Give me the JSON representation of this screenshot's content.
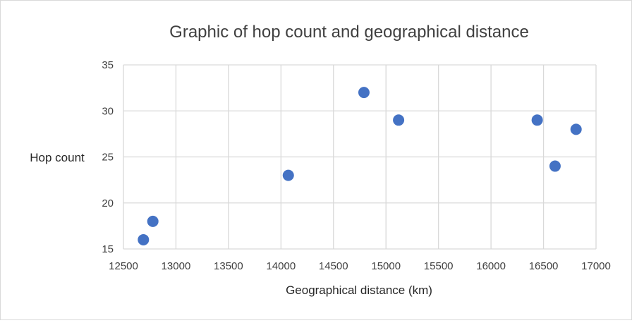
{
  "chart_data": {
    "type": "scatter",
    "title": "Graphic of hop count and geographical distance",
    "xlabel": "Geographical distance (km)",
    "ylabel": "Hop count",
    "xlim": [
      12500,
      17000
    ],
    "ylim": [
      15,
      35
    ],
    "xticks": [
      "12500",
      "13000",
      "13500",
      "14000",
      "14500",
      "15000",
      "15500",
      "16000",
      "16500",
      "17000"
    ],
    "yticks": [
      "15",
      "20",
      "25",
      "30",
      "35"
    ],
    "grid": true,
    "legend": "none",
    "color": "#4472c4",
    "points": [
      {
        "x": 12690,
        "y": 16
      },
      {
        "x": 12780,
        "y": 18
      },
      {
        "x": 14070,
        "y": 23
      },
      {
        "x": 14790,
        "y": 32
      },
      {
        "x": 15120,
        "y": 29
      },
      {
        "x": 16440,
        "y": 29
      },
      {
        "x": 16610,
        "y": 24
      },
      {
        "x": 16810,
        "y": 28
      }
    ]
  }
}
